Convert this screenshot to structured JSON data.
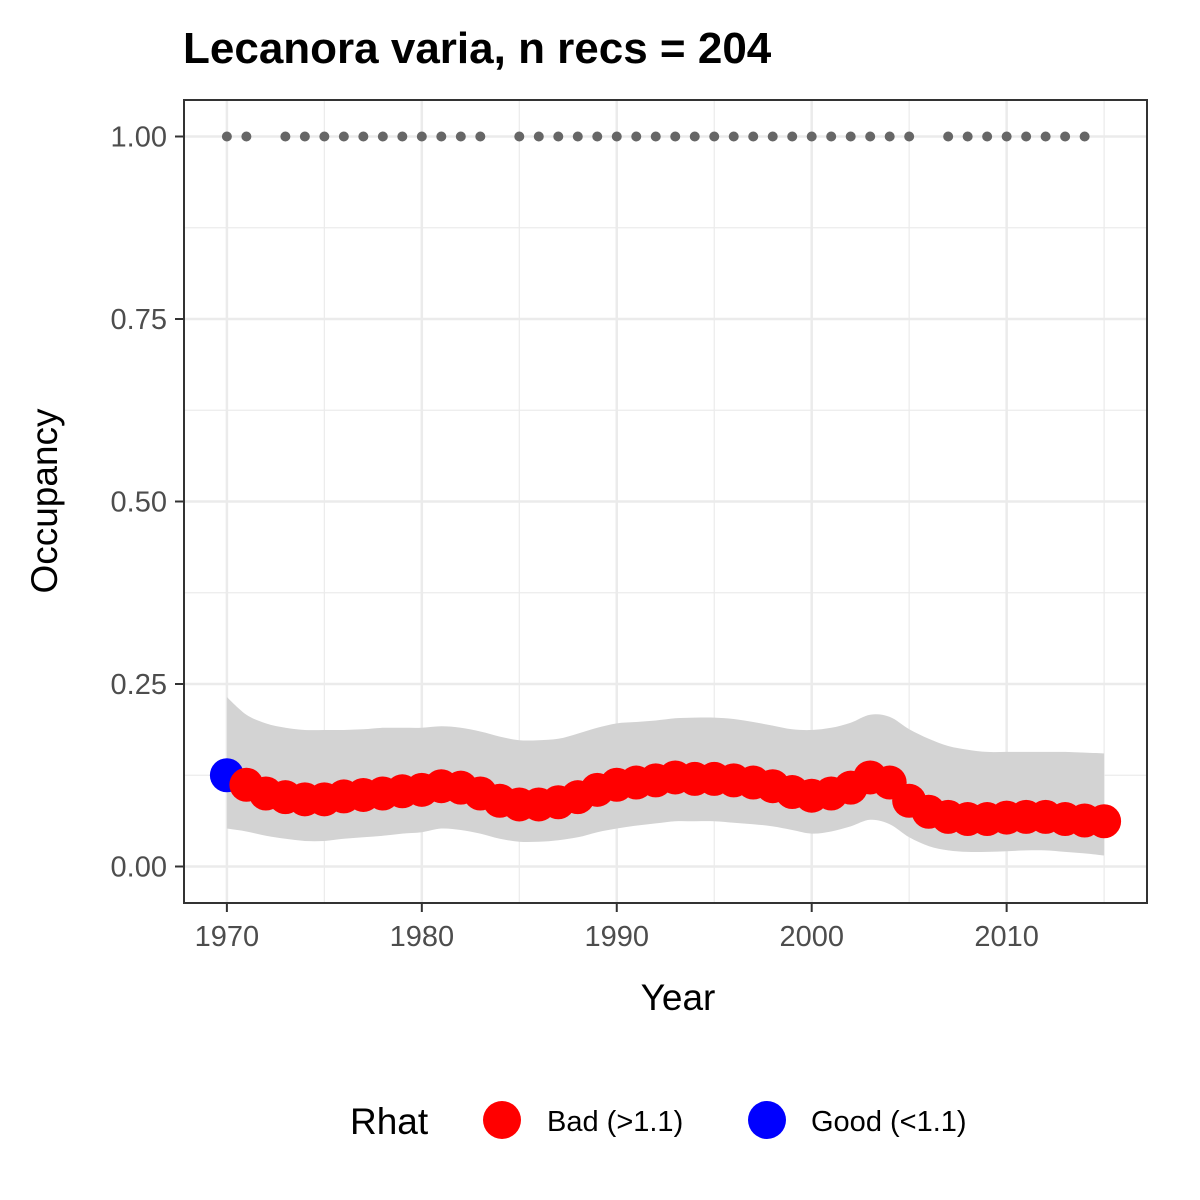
{
  "chart_data": {
    "type": "line",
    "title": "Lecanora varia, n recs = 204",
    "xlabel": "Year",
    "ylabel": "Occupancy",
    "xlim": [
      1967.8,
      2017.2
    ],
    "ylim": [
      -0.05,
      1.05
    ],
    "x_ticks": [
      1970,
      1980,
      1990,
      2000,
      2010
    ],
    "x_tick_labels": [
      "1970",
      "1980",
      "1990",
      "2000",
      "2010"
    ],
    "y_ticks": [
      0,
      0.25,
      0.5,
      0.75,
      1.0
    ],
    "y_tick_labels": [
      "0.00",
      "0.25",
      "0.50",
      "0.75",
      "1.00"
    ],
    "grid": true,
    "legend": {
      "title": "Rhat",
      "position": "bottom",
      "entries": [
        {
          "label": "Bad (>1.1)",
          "color": "#ff0000"
        },
        {
          "label": "Good (<1.1)",
          "color": "#0000ff"
        }
      ]
    },
    "colors": {
      "bad": "#ff0000",
      "good": "#0000ff",
      "ribbon": "#d3d3d3",
      "records": "#666666"
    },
    "series": [
      {
        "x": [
          1970,
          1971,
          1972,
          1973,
          1974,
          1975,
          1976,
          1977,
          1978,
          1979,
          1980,
          1981,
          1982,
          1983,
          1984,
          1985,
          1986,
          1987,
          1988,
          1989,
          1990,
          1991,
          1992,
          1993,
          1994,
          1995,
          1996,
          1997,
          1998,
          1999,
          2000,
          2001,
          2002,
          2003,
          2004,
          2005,
          2006,
          2007,
          2008,
          2009,
          2010,
          2011,
          2012,
          2013,
          2014,
          2015
        ],
        "mean": [
          0.125,
          0.112,
          0.1,
          0.095,
          0.092,
          0.092,
          0.096,
          0.098,
          0.1,
          0.103,
          0.105,
          0.11,
          0.108,
          0.1,
          0.09,
          0.085,
          0.085,
          0.088,
          0.095,
          0.105,
          0.112,
          0.115,
          0.118,
          0.122,
          0.12,
          0.12,
          0.118,
          0.115,
          0.11,
          0.102,
          0.097,
          0.1,
          0.108,
          0.122,
          0.115,
          0.09,
          0.075,
          0.068,
          0.065,
          0.065,
          0.067,
          0.068,
          0.068,
          0.065,
          0.063,
          0.062
        ],
        "lower": [
          0.052,
          0.048,
          0.042,
          0.038,
          0.035,
          0.035,
          0.038,
          0.04,
          0.042,
          0.045,
          0.047,
          0.052,
          0.05,
          0.045,
          0.038,
          0.034,
          0.034,
          0.036,
          0.04,
          0.047,
          0.052,
          0.056,
          0.059,
          0.062,
          0.062,
          0.062,
          0.06,
          0.058,
          0.055,
          0.05,
          0.045,
          0.048,
          0.055,
          0.064,
          0.058,
          0.04,
          0.028,
          0.022,
          0.02,
          0.02,
          0.021,
          0.022,
          0.022,
          0.02,
          0.018,
          0.015
        ],
        "upper": [
          0.232,
          0.208,
          0.196,
          0.19,
          0.187,
          0.187,
          0.187,
          0.188,
          0.19,
          0.19,
          0.19,
          0.192,
          0.19,
          0.185,
          0.178,
          0.173,
          0.173,
          0.175,
          0.182,
          0.19,
          0.196,
          0.198,
          0.2,
          0.203,
          0.204,
          0.204,
          0.202,
          0.198,
          0.193,
          0.188,
          0.187,
          0.19,
          0.197,
          0.208,
          0.205,
          0.188,
          0.175,
          0.165,
          0.16,
          0.157,
          0.157,
          0.157,
          0.157,
          0.157,
          0.156,
          0.155
        ],
        "rhat": [
          "Good",
          "Bad",
          "Bad",
          "Bad",
          "Bad",
          "Bad",
          "Bad",
          "Bad",
          "Bad",
          "Bad",
          "Bad",
          "Bad",
          "Bad",
          "Bad",
          "Bad",
          "Bad",
          "Bad",
          "Bad",
          "Bad",
          "Bad",
          "Bad",
          "Bad",
          "Bad",
          "Bad",
          "Bad",
          "Bad",
          "Bad",
          "Bad",
          "Bad",
          "Bad",
          "Bad",
          "Bad",
          "Bad",
          "Bad",
          "Bad",
          "Bad",
          "Bad",
          "Bad",
          "Bad",
          "Bad",
          "Bad",
          "Bad",
          "Bad",
          "Bad",
          "Bad",
          "Bad"
        ]
      }
    ],
    "record_years": {
      "y": 1.0,
      "x": [
        1970,
        1971,
        1973,
        1974,
        1975,
        1976,
        1977,
        1978,
        1979,
        1980,
        1981,
        1982,
        1983,
        1985,
        1986,
        1987,
        1988,
        1989,
        1990,
        1991,
        1992,
        1993,
        1994,
        1995,
        1996,
        1997,
        1998,
        1999,
        2000,
        2001,
        2002,
        2003,
        2004,
        2005,
        2007,
        2008,
        2009,
        2010,
        2011,
        2012,
        2013,
        2014
      ]
    }
  }
}
